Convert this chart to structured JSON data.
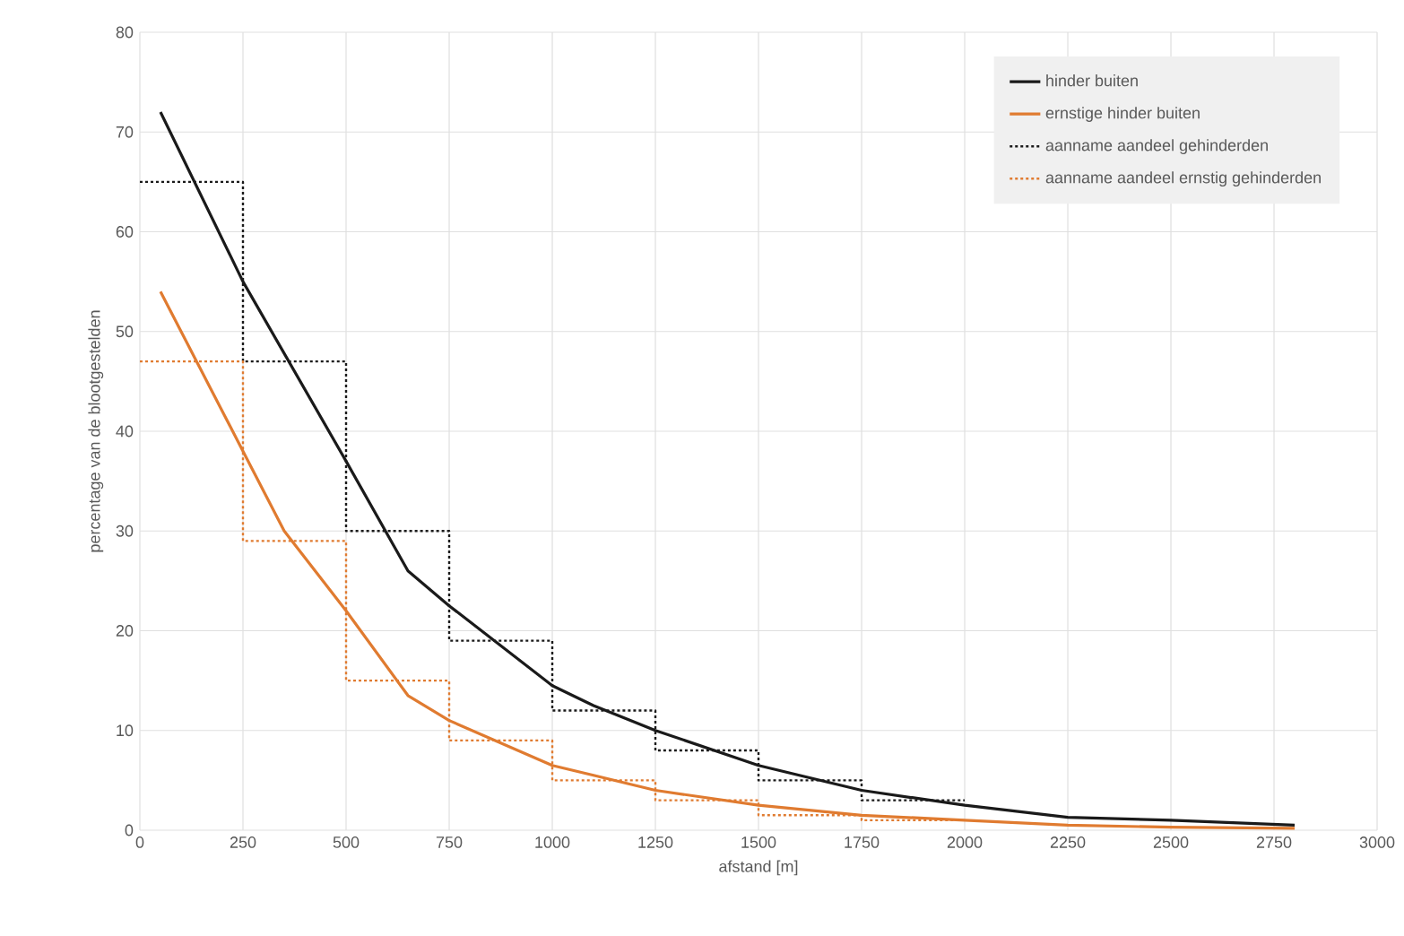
{
  "chart_data": {
    "type": "line",
    "xlabel": "afstand [m]",
    "ylabel": "percentage van de blootgestelden",
    "xlim": [
      0,
      3000
    ],
    "xticks": [
      0,
      250,
      500,
      750,
      1000,
      1250,
      1500,
      1750,
      2000,
      2250,
      2500,
      2750,
      3000
    ],
    "ylim": [
      0,
      80
    ],
    "yticks": [
      0,
      10,
      20,
      30,
      40,
      50,
      60,
      70,
      80
    ],
    "grid": true,
    "legend": "top right",
    "series": [
      {
        "name": "hinder buiten",
        "color": "#1a1a1a",
        "line_style": "solid",
        "x": [
          50,
          250,
          500,
          650,
          750,
          1000,
          1100,
          1250,
          1500,
          1750,
          2000,
          2250,
          2500,
          2800
        ],
        "values": [
          72,
          55,
          37,
          26,
          22.5,
          14.5,
          12.5,
          10,
          6.5,
          4,
          2.5,
          1.3,
          1,
          0.5
        ]
      },
      {
        "name": "ernstige hinder buiten",
        "color": "#e07b30",
        "line_style": "solid",
        "x": [
          50,
          250,
          350,
          500,
          650,
          750,
          1000,
          1100,
          1250,
          1500,
          1750,
          2000,
          2250,
          2500,
          2800
        ],
        "values": [
          54,
          38,
          30,
          22,
          13.5,
          11,
          6.5,
          5.5,
          4,
          2.5,
          1.5,
          1,
          0.5,
          0.3,
          0.2
        ]
      },
      {
        "name": "aanname aandeel gehinderden",
        "type": "step",
        "color": "#1a1a1a",
        "line_style": "dotted",
        "x": [
          0,
          250,
          500,
          750,
          1000,
          1250,
          1500,
          1750,
          2000
        ],
        "values": [
          65,
          47,
          30,
          19,
          12,
          8,
          5,
          3,
          3
        ]
      },
      {
        "name": "aanname aandeel ernstig gehinderden",
        "type": "step",
        "color": "#e07b30",
        "line_style": "dotted",
        "x": [
          0,
          250,
          500,
          750,
          1000,
          1250,
          1500,
          1750,
          2000
        ],
        "values": [
          47,
          29,
          15,
          9,
          5,
          3,
          1.5,
          1,
          1
        ]
      }
    ]
  }
}
